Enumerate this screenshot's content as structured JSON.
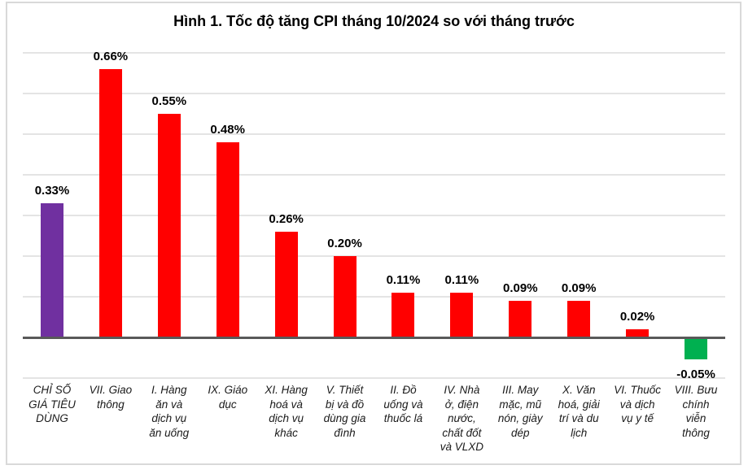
{
  "chart_data": {
    "type": "bar",
    "title": "Hình 1. Tốc độ tăng CPI tháng 10/2024 so với tháng trước",
    "xlabel": "",
    "ylabel": "",
    "unit": "%",
    "ylim": [
      -0.1,
      0.7
    ],
    "gridline_step": 0.1,
    "grid": true,
    "legend_position": "none",
    "categories": [
      "CHỈ SỐ GIÁ TIÊU DÙNG",
      "VII. Giao thông",
      "I. Hàng ăn và dịch vụ ăn uống",
      "IX. Giáo dục",
      "XI. Hàng hoá và dịch vụ khác",
      "V. Thiết bị và đồ dùng gia đình",
      "II. Đồ uống và thuốc lá",
      "IV. Nhà ở, điện nước, chất đốt và VLXD",
      "III. May mặc, mũ nón, giày dép",
      "X. Văn hoá, giải trí và du lịch",
      "VI. Thuốc và dịch vụ y tế",
      "VIII. Bưu chính viễn thông"
    ],
    "category_display": [
      "CHỈ SỐ\nGIÁ TIÊU\nDÙNG",
      "VII. Giao\nthông",
      "I. Hàng\năn và\ndịch vụ\năn uống",
      "IX. Giáo\ndục",
      "XI. Hàng\nhoá và\ndịch vụ\nkhác",
      "V. Thiết\nbị và đồ\ndùng gia\nđình",
      "II. Đồ\nuống và\nthuốc lá",
      "IV. Nhà\nở, điện\nnước,\nchất đốt\nvà VLXD",
      "III. May\nmặc, mũ\nnón, giày\ndép",
      "X. Văn\nhoá, giải\ntrí và du\nlịch",
      "VI. Thuốc\nvà dịch\nvụ y tế",
      "VIII. Bưu\nchính\nviễn\nthông"
    ],
    "values": [
      0.33,
      0.66,
      0.55,
      0.48,
      0.26,
      0.2,
      0.11,
      0.11,
      0.09,
      0.09,
      0.02,
      -0.05
    ],
    "value_labels": [
      "0.33%",
      "0.66%",
      "0.55%",
      "0.48%",
      "0.26%",
      "0.20%",
      "0.11%",
      "0.11%",
      "0.09%",
      "0.09%",
      "0.02%",
      "-0.05%"
    ],
    "bar_colors": [
      "#7030A0",
      "#FF0000",
      "#FF0000",
      "#FF0000",
      "#FF0000",
      "#FF0000",
      "#FF0000",
      "#FF0000",
      "#FF0000",
      "#FF0000",
      "#FF0000",
      "#00B050"
    ]
  },
  "colors": {
    "bar_red": "#FF0000",
    "bar_purple": "#7030A0",
    "bar_green": "#00B050",
    "axis_line": "#595959",
    "gridline": "#E4E4E4",
    "outer_border": "#D9D9D9",
    "value_label_text": "#000000",
    "category_label_text": "#1A1A1A",
    "title_text": "#000000"
  }
}
